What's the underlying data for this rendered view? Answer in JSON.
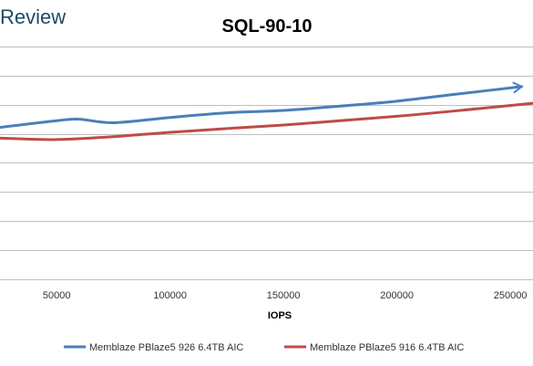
{
  "watermark": "Review",
  "chart_data": {
    "type": "line",
    "title": "SQL-90-10",
    "xlabel": "IOPS",
    "ylabel": "",
    "xlim": [
      25000,
      260000
    ],
    "ylim": [
      0,
      9
    ],
    "x_ticks": [
      50000,
      100000,
      150000,
      200000,
      250000
    ],
    "x_tick_labels": [
      "50000",
      "100000",
      "150000",
      "200000",
      "250000"
    ],
    "y_gridlines": [
      0,
      1,
      2,
      3,
      4,
      5,
      6,
      7,
      8
    ],
    "grid": true,
    "legend_position": "bottom",
    "series": [
      {
        "name": "Memblaze PBlaze5 926 6.4TB AIC",
        "color": "#4a7ebb",
        "x": [
          25000,
          50000,
          60000,
          75000,
          100000,
          125000,
          150000,
          175000,
          200000,
          225000,
          255000
        ],
        "y": [
          5.22,
          5.45,
          5.5,
          5.38,
          5.56,
          5.72,
          5.8,
          5.95,
          6.12,
          6.35,
          6.62
        ]
      },
      {
        "name": "Memblaze PBlaze5 916 6.4TB AIC",
        "color": "#be4b48",
        "x": [
          25000,
          50000,
          75000,
          100000,
          125000,
          150000,
          175000,
          200000,
          225000,
          260000
        ],
        "y": [
          4.85,
          4.8,
          4.9,
          5.05,
          5.18,
          5.3,
          5.45,
          5.6,
          5.78,
          6.05
        ]
      }
    ]
  }
}
